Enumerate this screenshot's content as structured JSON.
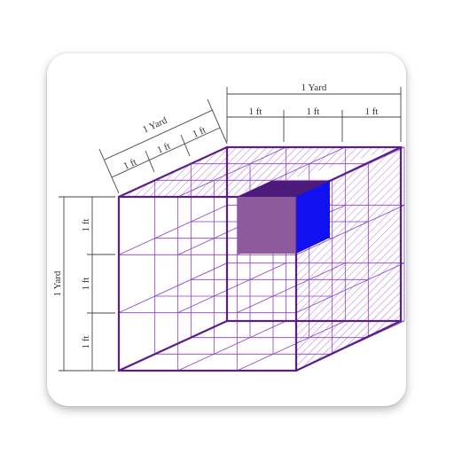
{
  "labels": {
    "top_yard": "1 Yard",
    "top_ft": [
      "1 ft",
      "1 ft",
      "1 ft"
    ],
    "diag_yard": "1 Yard",
    "diag_ft": [
      "1 ft",
      "1 ft",
      "1 ft"
    ],
    "left_yard": "1 Yard",
    "left_ft": [
      "1 ft",
      "1 ft",
      "1 ft"
    ]
  },
  "colors": {
    "edge": "#5a1e8c",
    "grid": "#8a3fc8",
    "hatch": "#9b59d6",
    "small_cube_front": "#8e5a9e",
    "small_cube_top": "#4b1a7a",
    "small_cube_side": "#1010f0",
    "dim_line": "#444444",
    "card_bg": "#ffffff"
  }
}
